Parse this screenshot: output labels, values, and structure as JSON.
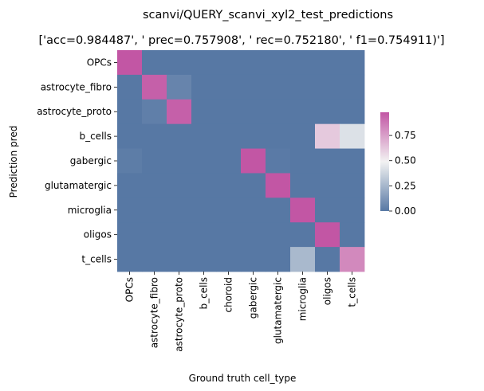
{
  "chart_data": {
    "type": "heatmap",
    "title": "scanvi/QUERY_scanvi_xyl2_test_predictions",
    "subtitle": "['acc=0.984487', '  prec=0.757908', ' rec=0.752180', ' f1=0.754911)']",
    "xlabel": "Ground truth cell_type",
    "ylabel": "Prediction pred",
    "x_categories": [
      "OPCs",
      "astrocyte_fibro",
      "astrocyte_proto",
      "b_cells",
      "choroid",
      "gabergic",
      "glutamatergic",
      "microglia",
      "oligos",
      "t_cells"
    ],
    "y_categories": [
      "OPCs",
      "astrocyte_fibro",
      "astrocyte_proto",
      "b_cells",
      "gabergic",
      "glutamatergic",
      "microglia",
      "oligos",
      "t_cells"
    ],
    "values": [
      [
        0.98,
        0.0,
        0.0,
        0.0,
        0.0,
        0.0,
        0.0,
        0.0,
        0.0,
        0.0
      ],
      [
        0.0,
        0.95,
        0.05,
        0.0,
        0.0,
        0.0,
        0.0,
        0.0,
        0.0,
        0.0
      ],
      [
        0.0,
        0.03,
        0.95,
        0.0,
        0.0,
        0.0,
        0.0,
        0.0,
        0.0,
        0.0
      ],
      [
        0.0,
        0.0,
        0.0,
        0.0,
        0.0,
        0.0,
        0.0,
        0.0,
        0.62,
        0.42
      ],
      [
        0.02,
        0.0,
        0.0,
        0.0,
        0.0,
        0.98,
        0.01,
        0.0,
        0.0,
        0.0
      ],
      [
        0.0,
        0.0,
        0.0,
        0.0,
        0.0,
        0.0,
        0.99,
        0.0,
        0.0,
        0.0
      ],
      [
        0.0,
        0.0,
        0.0,
        0.0,
        0.0,
        0.0,
        0.0,
        1.0,
        0.0,
        0.0
      ],
      [
        0.0,
        0.0,
        0.0,
        0.0,
        0.0,
        0.0,
        0.0,
        0.0,
        1.0,
        0.0
      ],
      [
        0.0,
        0.0,
        0.0,
        0.0,
        0.0,
        0.0,
        0.0,
        0.26,
        0.0,
        0.82
      ]
    ],
    "colorbar": {
      "range": [
        0.0,
        0.98
      ],
      "ticks": [
        "0.00",
        "0.25",
        "0.50",
        "0.75"
      ],
      "tick_values": [
        0.0,
        0.25,
        0.5,
        0.75
      ],
      "colors": [
        "#5778a4",
        "#f2f2f2",
        "#c256a4"
      ]
    }
  }
}
